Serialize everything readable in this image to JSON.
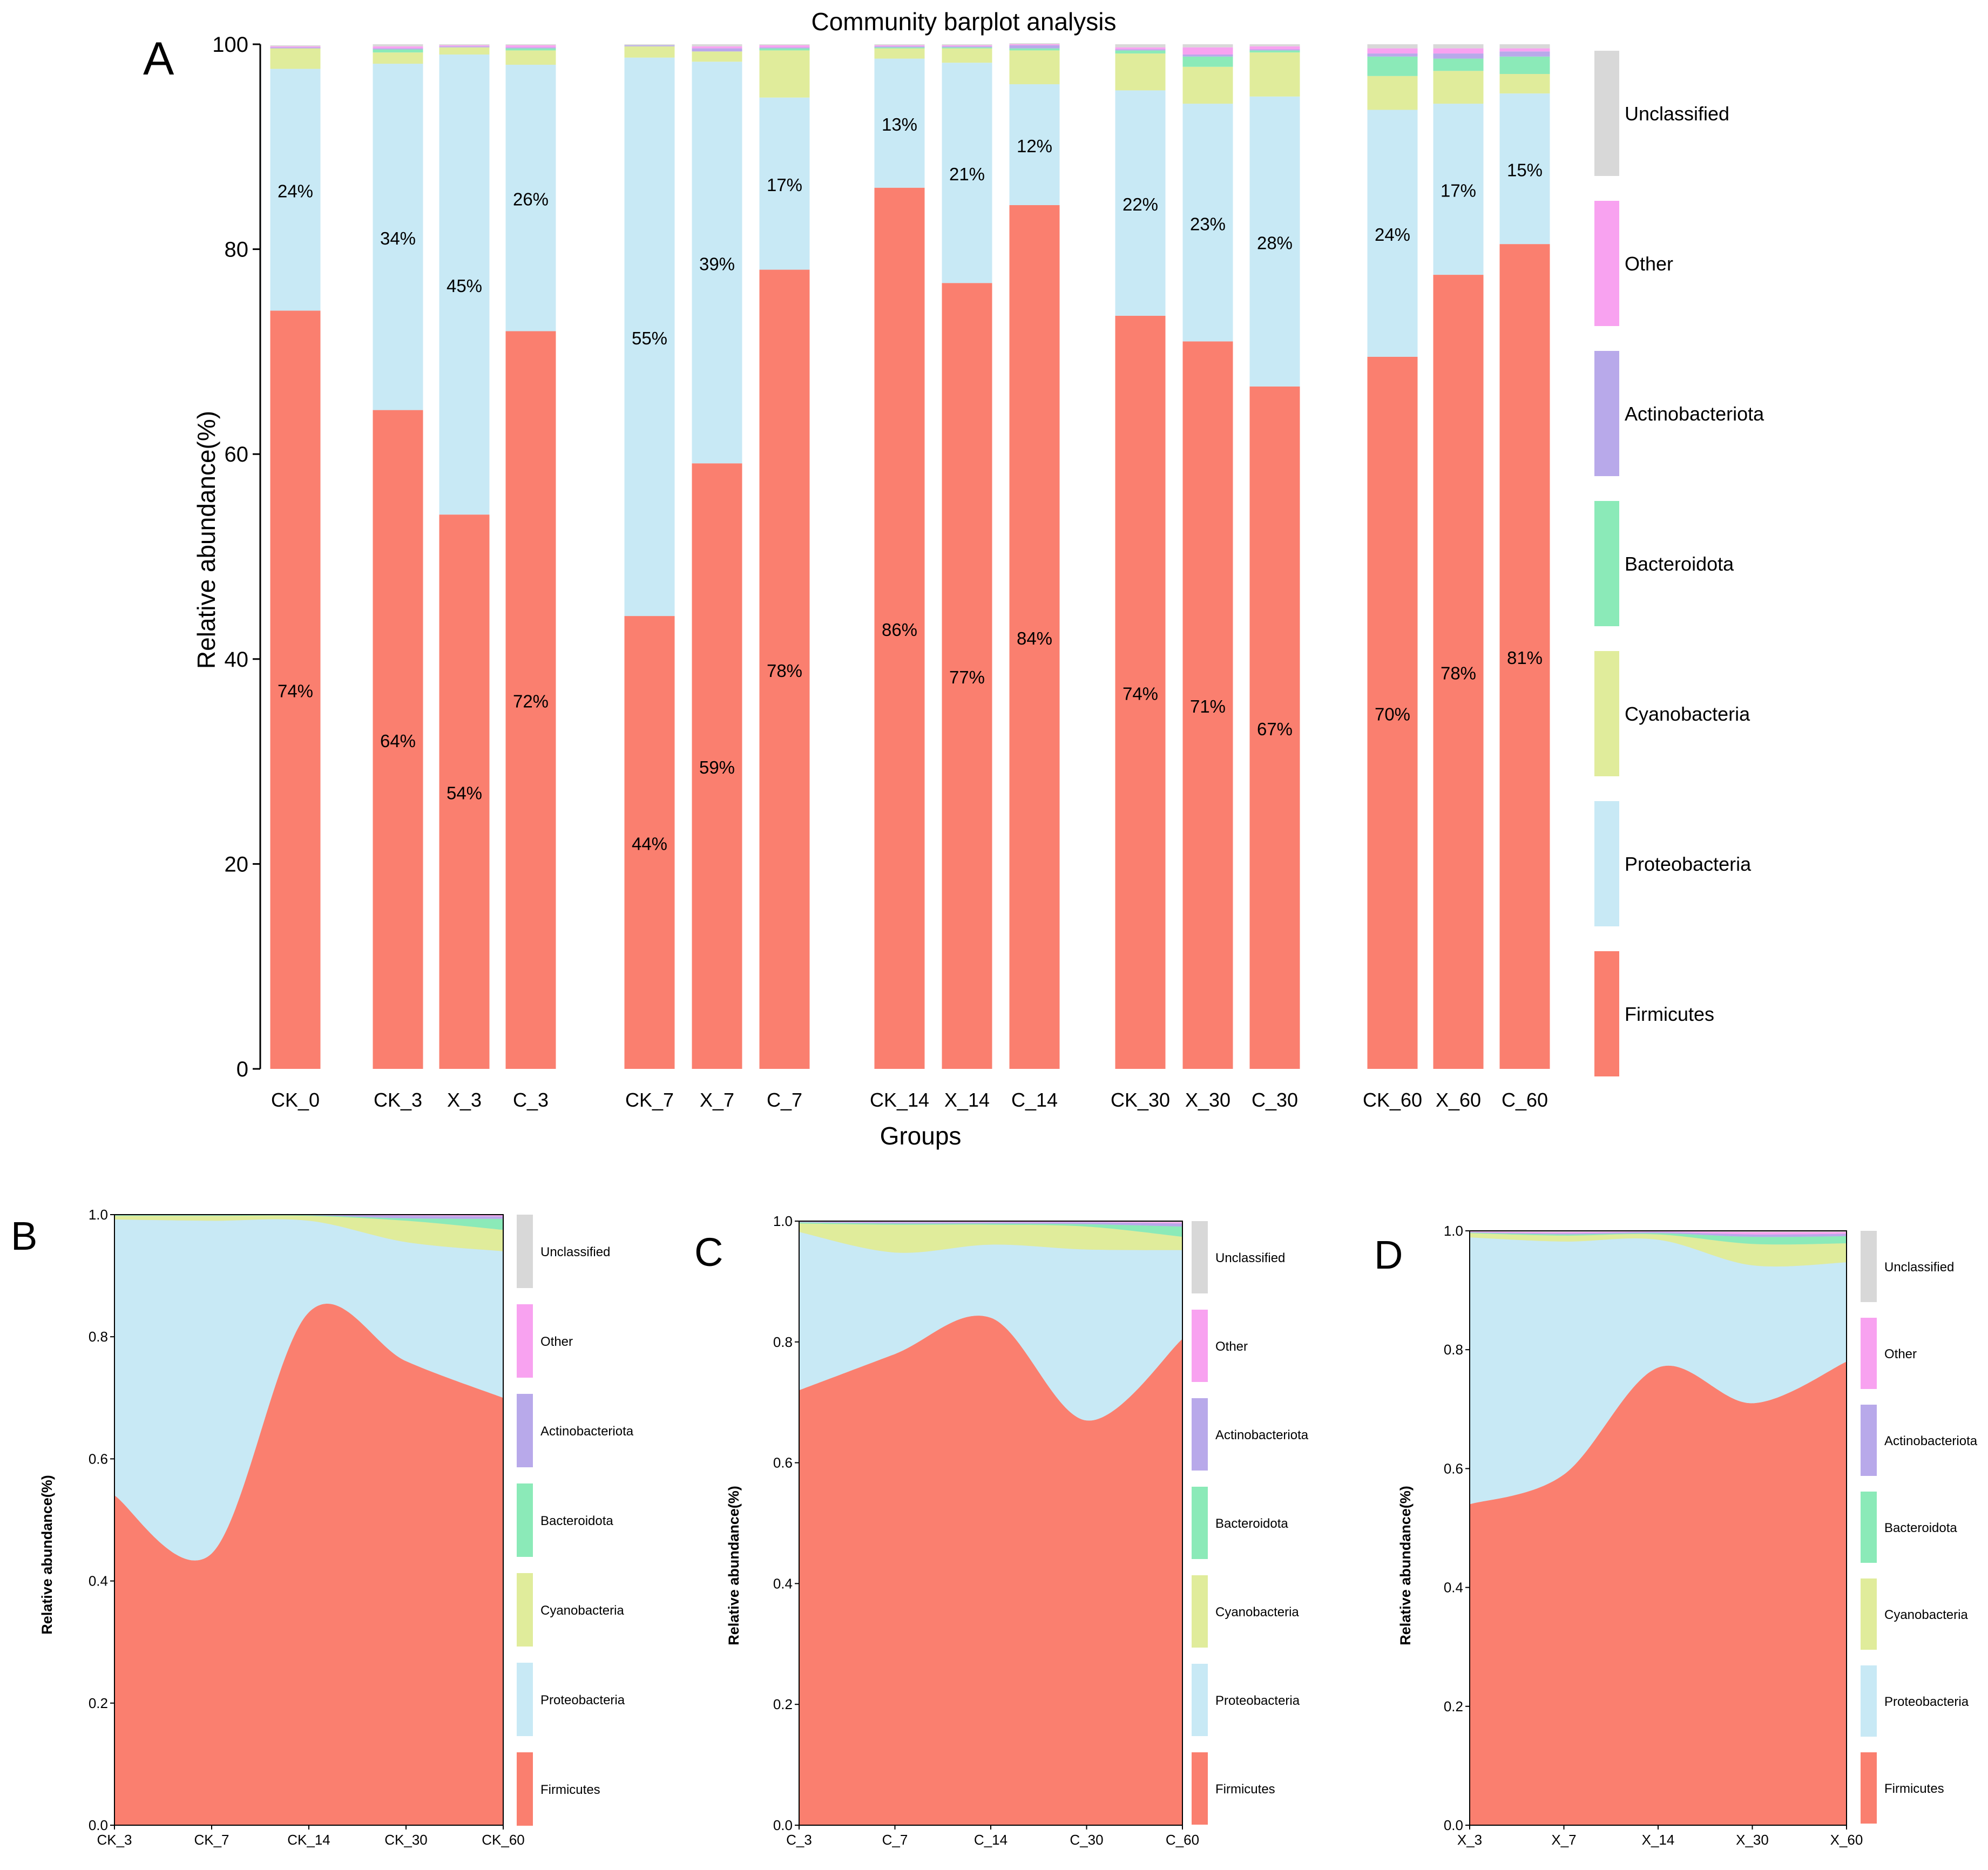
{
  "panel_labels": [
    "A",
    "B",
    "C",
    "D"
  ],
  "legend_labels": [
    "Unclassified",
    "Other",
    "Actinobacteriota",
    "Bacteroidota",
    "Cyanobacteria",
    "Proteobacteria",
    "Firmicutes"
  ],
  "colors": {
    "Firmicutes": "#FA7F6F",
    "Proteobacteria": "#C8E9F5",
    "Cyanobacteria": "#E0EC9B",
    "Bacteroidota": "#8BEAB8",
    "Actinobacteriota": "#B8A9EA",
    "Other": "#F8A2F0",
    "Unclassified": "#D8D8D8"
  },
  "chart_data": [
    {
      "panel": "A",
      "type": "bar",
      "stacked": true,
      "title": "Community barplot analysis",
      "xlabel": "Groups",
      "ylabel": "Relative abundance(%)",
      "ylim": [
        0,
        100
      ],
      "yticks": [
        "0",
        "20",
        "40",
        "60",
        "80",
        "100"
      ],
      "categories": [
        "CK_0",
        "CK_3",
        "X_3",
        "C_3",
        "CK_7",
        "X_7",
        "C_7",
        "CK_14",
        "X_14",
        "C_14",
        "CK_30",
        "X_30",
        "C_30",
        "CK_60",
        "X_60",
        "C_60"
      ],
      "series": [
        {
          "name": "Firmicutes",
          "values": [
            74,
            64.3,
            54.1,
            72,
            44.2,
            59.1,
            78,
            86,
            76.7,
            84.3,
            73.5,
            71,
            66.6,
            69.5,
            77.5,
            80.5
          ]
        },
        {
          "name": "Proteobacteria",
          "values": [
            23.6,
            33.8,
            44.9,
            26,
            54.5,
            39.2,
            16.8,
            12.6,
            21.5,
            11.8,
            22,
            23.2,
            28.3,
            24.1,
            16.7,
            14.7
          ]
        },
        {
          "name": "Cyanobacteria",
          "values": [
            2,
            1.1,
            0.7,
            1.4,
            1.1,
            1,
            4.6,
            1,
            1.4,
            3.3,
            3.6,
            3.6,
            4.3,
            3.3,
            3.2,
            1.9
          ]
        },
        {
          "name": "Bacteroidota",
          "values": [
            0,
            0.3,
            0,
            0.2,
            0,
            0,
            0.2,
            0.1,
            0.1,
            0.2,
            0.3,
            1,
            0.2,
            1.9,
            1.2,
            1.7
          ]
        },
        {
          "name": "Actinobacteriota",
          "values": [
            0.1,
            0.1,
            0.1,
            0.1,
            0.1,
            0.3,
            0.1,
            0.1,
            0.1,
            0.3,
            0.1,
            0.2,
            0.1,
            0.3,
            0.5,
            0.5
          ]
        },
        {
          "name": "Other",
          "values": [
            0.1,
            0.2,
            0.1,
            0.2,
            0,
            0.2,
            0.2,
            0.1,
            0.1,
            0.1,
            0.2,
            0.7,
            0.3,
            0.5,
            0.5,
            0.3
          ]
        },
        {
          "name": "Unclassified",
          "values": [
            0.1,
            0.2,
            0.1,
            0.1,
            0.1,
            0.2,
            0.1,
            0.1,
            0.1,
            0.1,
            0.3,
            0.3,
            0.2,
            0.4,
            0.4,
            0.4
          ]
        }
      ],
      "data_labels": {
        "Firmicutes": [
          "74%",
          "64%",
          "54%",
          "72%",
          "44%",
          "59%",
          "78%",
          "86%",
          "77%",
          "84%",
          "74%",
          "71%",
          "67%",
          "70%",
          "78%",
          "81%"
        ],
        "Proteobacteria": [
          "24%",
          "34%",
          "45%",
          "26%",
          "55%",
          "39%",
          "17%",
          "13%",
          "21%",
          "12%",
          "22%",
          "23%",
          "28%",
          "24%",
          "17%",
          "15%"
        ]
      }
    },
    {
      "panel": "B",
      "type": "area",
      "stacked": true,
      "ylabel": "Relative abundance(%)",
      "ylim": [
        0,
        1
      ],
      "yticks": [
        "0.0",
        "0.2",
        "0.4",
        "0.6",
        "0.8",
        "1.0"
      ],
      "categories": [
        "CK_3",
        "CK_7",
        "CK_14",
        "CK_30",
        "CK_60"
      ],
      "series": [
        {
          "name": "Firmicutes",
          "values": [
            0.54,
            0.445,
            0.84,
            0.76,
            0.7
          ]
        },
        {
          "name": "Proteobacteria",
          "values": [
            0.452,
            0.545,
            0.15,
            0.195,
            0.24
          ]
        },
        {
          "name": "Cyanobacteria",
          "values": [
            0.006,
            0.008,
            0.008,
            0.035,
            0.035
          ]
        },
        {
          "name": "Bacteroidota",
          "values": [
            0.001,
            0.001,
            0.001,
            0.004,
            0.018
          ]
        },
        {
          "name": "Actinobacteriota",
          "values": [
            0.001,
            0.001,
            0.001,
            0.004,
            0.004
          ]
        },
        {
          "name": "Other",
          "values": [
            0,
            0,
            0,
            0.001,
            0.002
          ]
        },
        {
          "name": "Unclassified",
          "values": [
            0,
            0,
            0,
            0.001,
            0.001
          ]
        }
      ]
    },
    {
      "panel": "C",
      "type": "area",
      "stacked": true,
      "ylabel": "Relative abundance(%)",
      "ylim": [
        0,
        1
      ],
      "yticks": [
        "0.0",
        "0.2",
        "0.4",
        "0.6",
        "0.8",
        "1.0"
      ],
      "categories": [
        "C_3",
        "C_7",
        "C_14",
        "C_30",
        "C_60"
      ],
      "series": [
        {
          "name": "Firmicutes",
          "values": [
            0.72,
            0.78,
            0.84,
            0.67,
            0.805
          ]
        },
        {
          "name": "Proteobacteria",
          "values": [
            0.262,
            0.168,
            0.121,
            0.283,
            0.147
          ]
        },
        {
          "name": "Cyanobacteria",
          "values": [
            0.014,
            0.046,
            0.033,
            0.038,
            0.022
          ]
        },
        {
          "name": "Bacteroidota",
          "values": [
            0.002,
            0.002,
            0.002,
            0.004,
            0.017
          ]
        },
        {
          "name": "Actinobacteriota",
          "values": [
            0.001,
            0.002,
            0.002,
            0.003,
            0.005
          ]
        },
        {
          "name": "Other",
          "values": [
            0.001,
            0.001,
            0.001,
            0.001,
            0.002
          ]
        },
        {
          "name": "Unclassified",
          "values": [
            0,
            0.001,
            0.001,
            0.001,
            0.002
          ]
        }
      ]
    },
    {
      "panel": "D",
      "type": "area",
      "stacked": true,
      "ylabel": "Relative abundance(%)",
      "ylim": [
        0,
        1
      ],
      "yticks": [
        "0.0",
        "0.2",
        "0.4",
        "0.6",
        "0.8",
        "1.0"
      ],
      "categories": [
        "X_3",
        "X_7",
        "X_14",
        "X_30",
        "X_60"
      ],
      "series": [
        {
          "name": "Firmicutes",
          "values": [
            0.54,
            0.59,
            0.77,
            0.71,
            0.78
          ]
        },
        {
          "name": "Proteobacteria",
          "values": [
            0.449,
            0.392,
            0.215,
            0.232,
            0.167
          ]
        },
        {
          "name": "Cyanobacteria",
          "values": [
            0.007,
            0.01,
            0.009,
            0.036,
            0.032
          ]
        },
        {
          "name": "Bacteroidota",
          "values": [
            0.001,
            0.002,
            0.002,
            0.012,
            0.012
          ]
        },
        {
          "name": "Actinobacteriota",
          "values": [
            0.001,
            0.002,
            0.002,
            0.004,
            0.004
          ]
        },
        {
          "name": "Other",
          "values": [
            0.001,
            0.002,
            0.001,
            0.004,
            0.003
          ]
        },
        {
          "name": "Unclassified",
          "values": [
            0.001,
            0.002,
            0.001,
            0.002,
            0.002
          ]
        }
      ]
    }
  ]
}
